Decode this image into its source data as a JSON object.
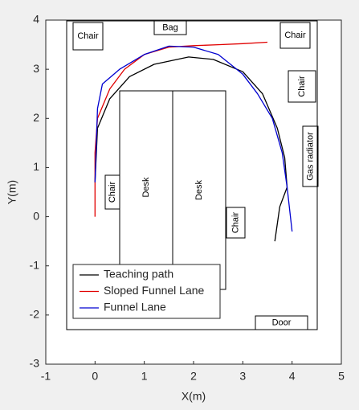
{
  "chart_data": {
    "type": "line",
    "xlabel": "X(m)",
    "ylabel": "Y(m)",
    "xlim": [
      -1,
      5
    ],
    "xticks": [
      -1,
      0,
      1,
      2,
      3,
      4,
      5
    ],
    "ylim": [
      -3,
      4
    ],
    "yticks": [
      -3,
      -2,
      -1,
      0,
      1,
      2,
      3,
      4
    ],
    "legend": "lower left",
    "annotations": [
      "Chair",
      "Bag",
      "Chair",
      "Chair",
      "Gas radiator",
      "Desk",
      "Desk",
      "Chair",
      "Chair",
      "Door"
    ],
    "series": [
      {
        "name": "Teaching path",
        "color": "#000000",
        "x": [
          0.0,
          0.05,
          0.3,
          0.7,
          1.2,
          1.9,
          2.4,
          3.0,
          3.4,
          3.7,
          3.85,
          3.9,
          3.75,
          3.65
        ],
        "y": [
          0.7,
          1.8,
          2.4,
          2.85,
          3.1,
          3.25,
          3.2,
          2.95,
          2.5,
          1.8,
          1.2,
          0.6,
          0.2,
          -0.5
        ]
      },
      {
        "name": "Sloped Funnel Lane",
        "color": "#e00000",
        "x": [
          0.0,
          0.0,
          0.05,
          0.3,
          0.6,
          1.0,
          1.5,
          2.0,
          2.5,
          3.0,
          3.5
        ],
        "y": [
          0.0,
          1.3,
          2.0,
          2.6,
          3.0,
          3.3,
          3.45,
          3.48,
          3.5,
          3.52,
          3.55
        ]
      },
      {
        "name": "Funnel Lane",
        "color": "#0000d0",
        "x": [
          0.0,
          0.05,
          0.15,
          0.5,
          1.0,
          1.5,
          2.0,
          2.5,
          3.0,
          3.3,
          3.6,
          3.8,
          3.9,
          4.0
        ],
        "y": [
          0.7,
          2.2,
          2.7,
          3.0,
          3.3,
          3.47,
          3.45,
          3.3,
          2.9,
          2.5,
          2.0,
          1.3,
          0.6,
          -0.3
        ]
      }
    ]
  }
}
